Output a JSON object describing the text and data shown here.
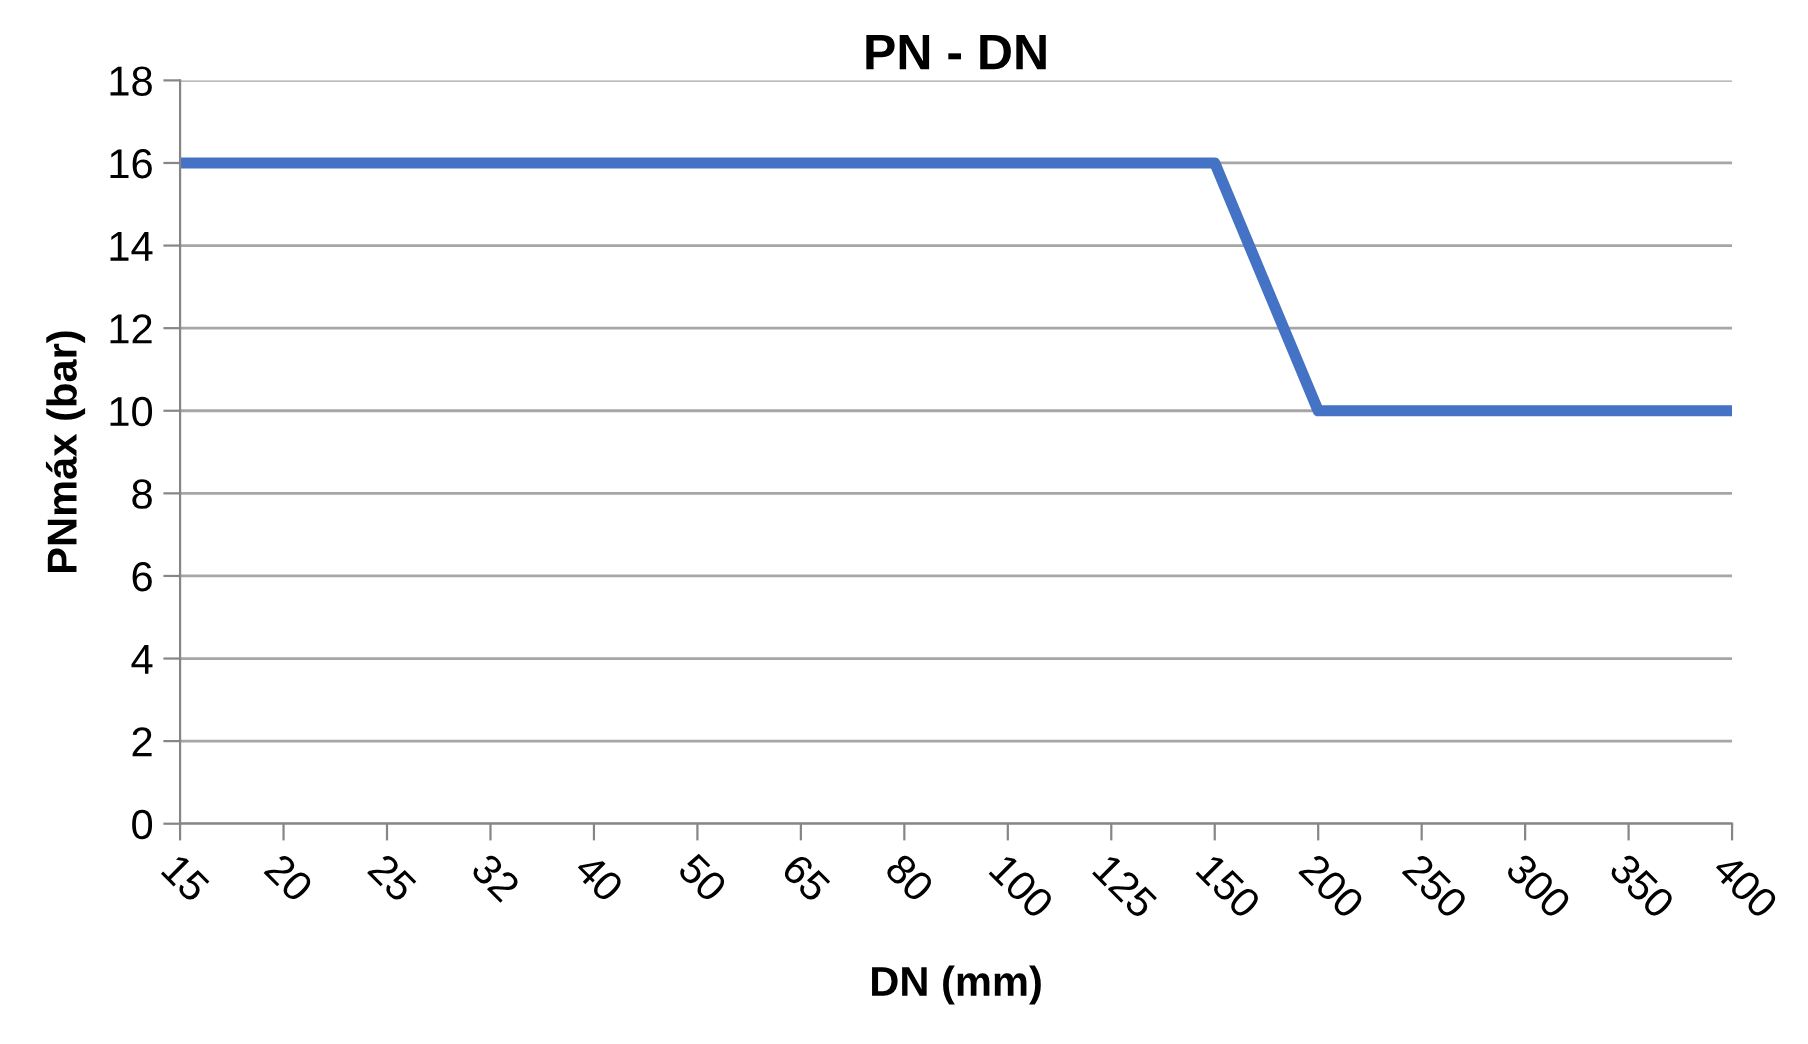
{
  "chart_data": {
    "type": "line",
    "title": "PN - DN",
    "xlabel": "DN (mm)",
    "ylabel": "PNmáx (bar)",
    "categories": [
      "15",
      "20",
      "25",
      "32",
      "40",
      "50",
      "65",
      "80",
      "100",
      "125",
      "150",
      "200",
      "250",
      "300",
      "350",
      "400"
    ],
    "series": [
      {
        "color": "#4472c4",
        "values": [
          16,
          16,
          16,
          16,
          16,
          16,
          16,
          16,
          16,
          16,
          16,
          10,
          10,
          10,
          10,
          10
        ]
      }
    ],
    "ylim": [
      0,
      18
    ],
    "yticks": [
      0,
      2,
      4,
      6,
      8,
      10,
      12,
      14,
      16,
      18
    ],
    "grid": "y",
    "marker": "none",
    "line_style": "solid"
  }
}
